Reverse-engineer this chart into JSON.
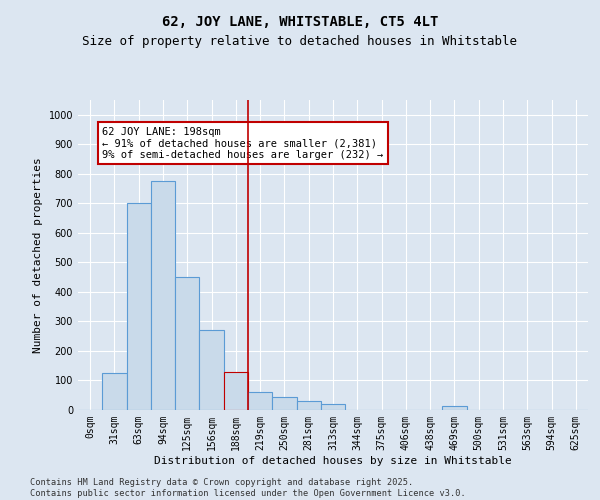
{
  "title": "62, JOY LANE, WHITSTABLE, CT5 4LT",
  "subtitle": "Size of property relative to detached houses in Whitstable",
  "xlabel": "Distribution of detached houses by size in Whitstable",
  "ylabel": "Number of detached properties",
  "bar_labels": [
    "0sqm",
    "31sqm",
    "63sqm",
    "94sqm",
    "125sqm",
    "156sqm",
    "188sqm",
    "219sqm",
    "250sqm",
    "281sqm",
    "313sqm",
    "344sqm",
    "375sqm",
    "406sqm",
    "438sqm",
    "469sqm",
    "500sqm",
    "531sqm",
    "563sqm",
    "594sqm",
    "625sqm"
  ],
  "bar_values": [
    0,
    125,
    700,
    775,
    450,
    270,
    130,
    60,
    45,
    30,
    20,
    0,
    0,
    0,
    0,
    15,
    0,
    0,
    0,
    0,
    0
  ],
  "bar_color": "#c9daea",
  "bar_edge_color": "#5b9bd5",
  "highlight_bar_index": 6,
  "highlight_bar_edge_color": "#c00000",
  "vline_color": "#c00000",
  "annotation_title": "62 JOY LANE: 198sqm",
  "annotation_line1": "← 91% of detached houses are smaller (2,381)",
  "annotation_line2": "9% of semi-detached houses are larger (232) →",
  "annotation_box_color": "#c00000",
  "ylim": [
    0,
    1050
  ],
  "yticks": [
    0,
    100,
    200,
    300,
    400,
    500,
    600,
    700,
    800,
    900,
    1000
  ],
  "bg_color": "#dce6f1",
  "plot_bg_color": "#dce6f1",
  "footer1": "Contains HM Land Registry data © Crown copyright and database right 2025.",
  "footer2": "Contains public sector information licensed under the Open Government Licence v3.0.",
  "title_fontsize": 10,
  "subtitle_fontsize": 9,
  "axis_label_fontsize": 8,
  "tick_fontsize": 7,
  "annotation_fontsize": 7.5
}
